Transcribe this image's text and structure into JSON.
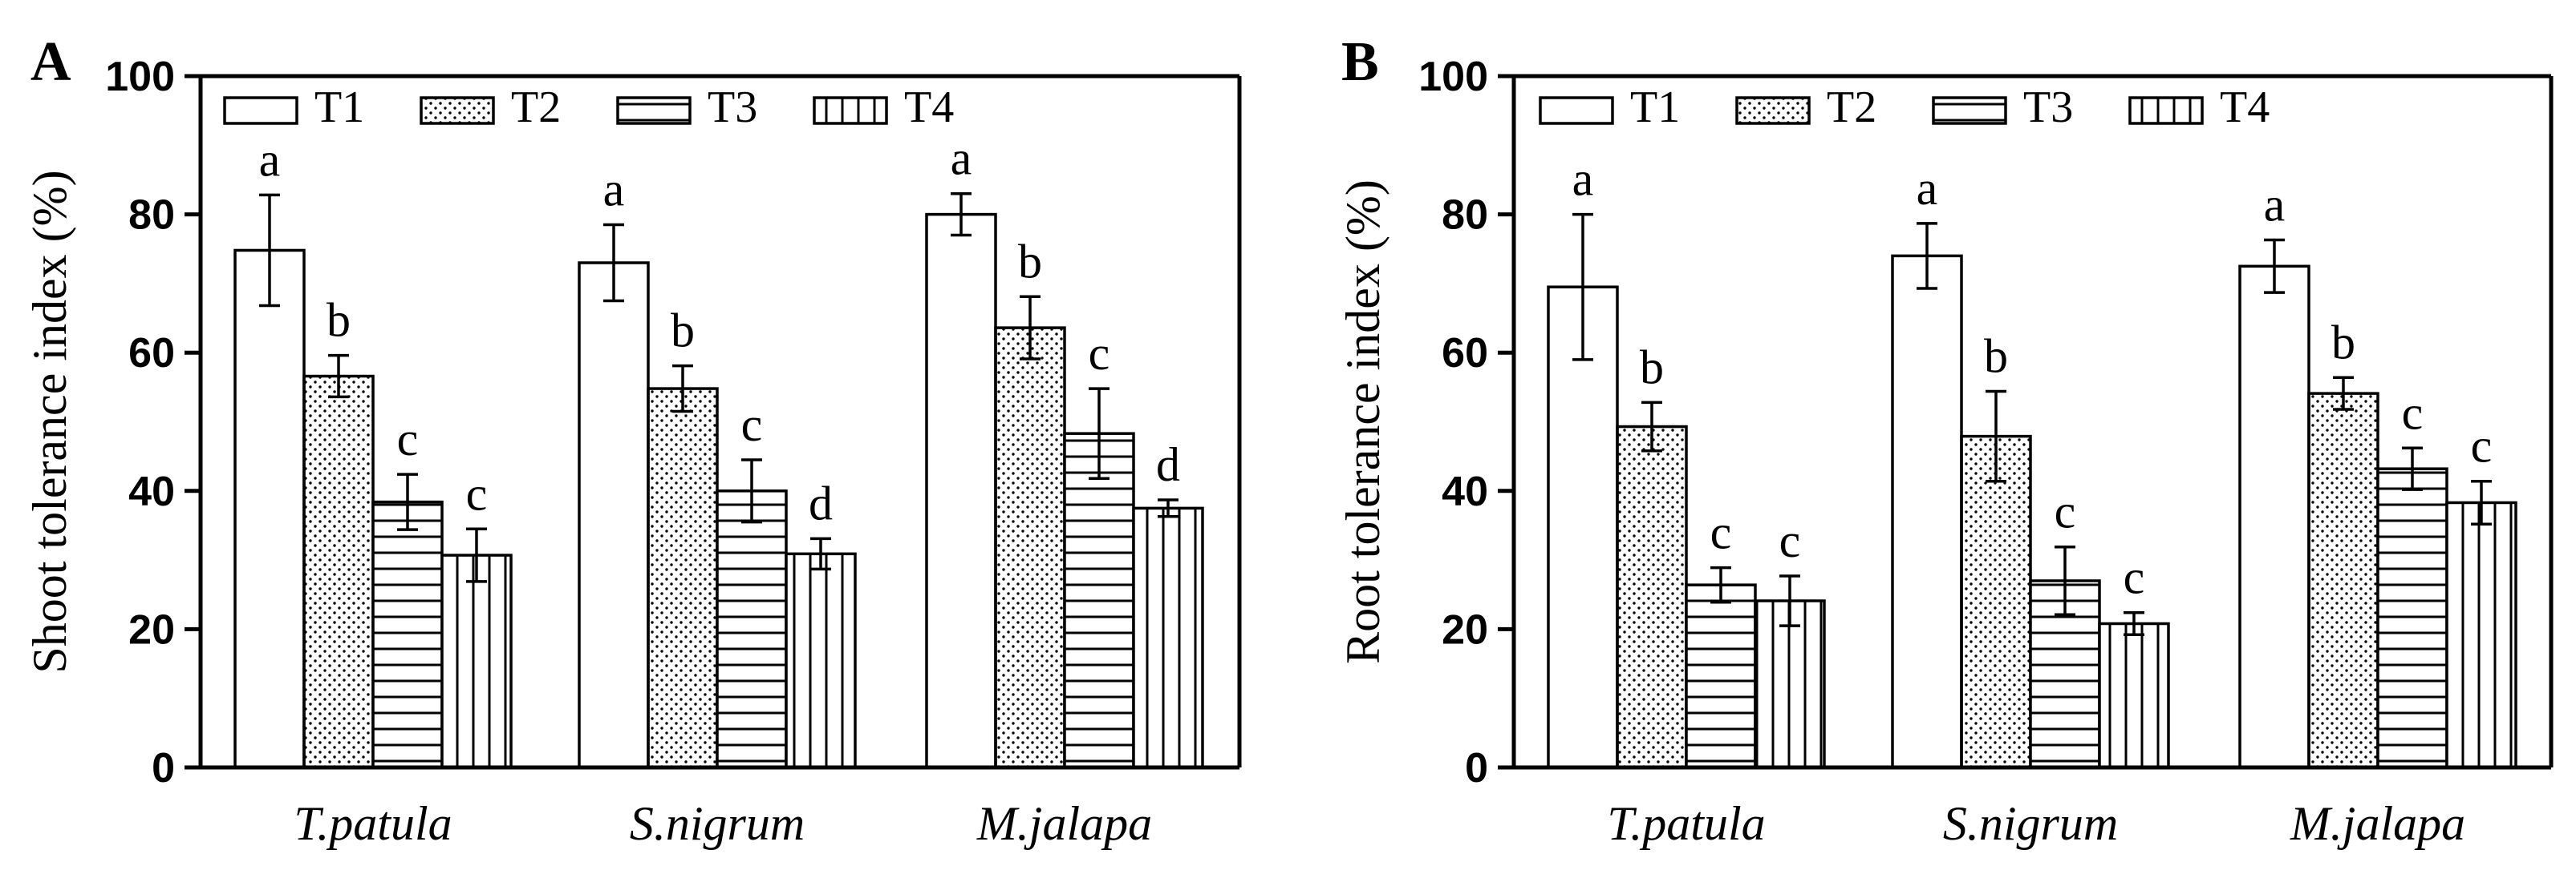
{
  "chart_data": [
    {
      "type": "bar",
      "panel_label": "A",
      "ylabel": "Shoot tolerance index (%)",
      "xlabel": "",
      "ylim": [
        0,
        100
      ],
      "yticks": [
        "0",
        "20",
        "40",
        "60",
        "80",
        "100"
      ],
      "grid": false,
      "legend_position": "top-left",
      "categories": [
        "T.patula",
        "S.nigrum",
        "M.jalapa"
      ],
      "series": [
        {
          "name": "T1",
          "pattern": "none",
          "values": [
            74.8,
            73.0,
            80.0
          ],
          "errors": [
            8.0,
            5.5,
            3.0
          ],
          "letters": [
            "a",
            "a",
            "a"
          ]
        },
        {
          "name": "T2",
          "pattern": "dots",
          "values": [
            56.6,
            54.8,
            63.6
          ],
          "errors": [
            3.0,
            3.3,
            4.5
          ],
          "letters": [
            "b",
            "b",
            "b"
          ]
        },
        {
          "name": "T3",
          "pattern": "hlines",
          "values": [
            38.4,
            40.0,
            48.3
          ],
          "errors": [
            4.0,
            4.5,
            6.5
          ],
          "letters": [
            "c",
            "c",
            "c"
          ]
        },
        {
          "name": "T4",
          "pattern": "vlines",
          "values": [
            30.7,
            30.9,
            37.5
          ],
          "errors": [
            3.8,
            2.2,
            1.2
          ],
          "letters": [
            "c",
            "d",
            "d"
          ]
        }
      ]
    },
    {
      "type": "bar",
      "panel_label": "B",
      "ylabel": "Root tolerance index (%)",
      "xlabel": "",
      "ylim": [
        0,
        100
      ],
      "yticks": [
        "0",
        "20",
        "40",
        "60",
        "80",
        "100"
      ],
      "grid": false,
      "legend_position": "top-left",
      "categories": [
        "T.patula",
        "S.nigrum",
        "M.jalapa"
      ],
      "series": [
        {
          "name": "T1",
          "pattern": "none",
          "values": [
            69.5,
            74.0,
            72.5
          ],
          "errors": [
            10.5,
            4.7,
            3.8
          ],
          "letters": [
            "a",
            "a",
            "a"
          ]
        },
        {
          "name": "T2",
          "pattern": "dots",
          "values": [
            49.3,
            47.9,
            54.1
          ],
          "errors": [
            3.5,
            6.5,
            2.3
          ],
          "letters": [
            "b",
            "b",
            "b"
          ]
        },
        {
          "name": "T3",
          "pattern": "hlines",
          "values": [
            26.4,
            27.0,
            43.2
          ],
          "errors": [
            2.5,
            4.9,
            3.0
          ],
          "letters": [
            "c",
            "c",
            "c"
          ]
        },
        {
          "name": "T4",
          "pattern": "vlines",
          "values": [
            24.1,
            20.8,
            38.3
          ],
          "errors": [
            3.6,
            1.6,
            3.1
          ],
          "letters": [
            "c",
            "c",
            "c"
          ]
        }
      ]
    }
  ]
}
